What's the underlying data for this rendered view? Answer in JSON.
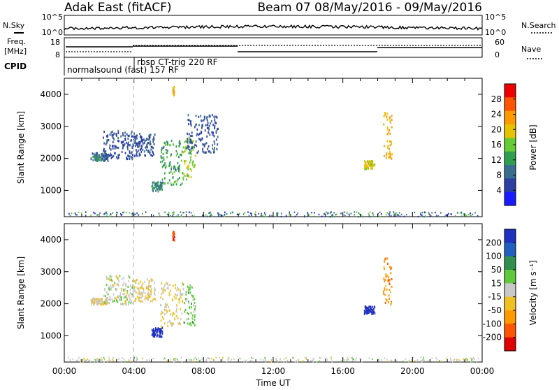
{
  "header": {
    "title_left": "Adak East (fitACF)",
    "title_right": "Beam 07  08/May/2016 - 09/May/2016"
  },
  "noise_panel": {
    "left_label": "N.Sky",
    "right_label": "N.Search",
    "left_ticks": [
      "10^5",
      "10^0"
    ],
    "right_ticks": [
      "10^5",
      "10^0"
    ]
  },
  "freq_panel": {
    "left_label_line1": "Freq.",
    "left_label_line2": "[MHz]",
    "right_label": "Nave",
    "left_ticks": [
      "18",
      "8"
    ],
    "right_ticks": [
      "60",
      "0"
    ]
  },
  "cpid": {
    "label": "CPID",
    "mode1": "normalsound (fast) 157 RF",
    "mode2": "rbsp CT-trig  220 RF"
  },
  "time_axis": {
    "ticks": [
      "00:00",
      "04:00",
      "08:00",
      "12:00",
      "16:00",
      "20:00",
      "00:00"
    ],
    "label": "Time UT"
  },
  "power_panel": {
    "ylabel": "Slant Range [km]",
    "yticks": [
      "1000",
      "2000",
      "3000",
      "4000"
    ],
    "colorbar_label": "Power [dB]",
    "colorbar_ticks": [
      "28",
      "24",
      "20",
      "16",
      "12",
      "8",
      "4"
    ],
    "colors": [
      "#1a1aff",
      "#2d3fa3",
      "#3a6e8f",
      "#2f9e4f",
      "#66cc33",
      "#e6c200",
      "#ff9900",
      "#ff5500",
      "#ee0000"
    ]
  },
  "velocity_panel": {
    "ylabel": "Slant Range [km]",
    "yticks": [
      "1000",
      "2000",
      "3000",
      "4000"
    ],
    "colorbar_label": "Velocity [m s⁻¹]",
    "colorbar_ticks": [
      "200",
      "100",
      "50",
      "15",
      "-15",
      "-50",
      "-100",
      "-200"
    ],
    "colors": [
      "#2030c0",
      "#1f5fbf",
      "#2f8f4f",
      "#5ec93a",
      "#c8c8c8",
      "#f0c020",
      "#ff9900",
      "#ff5500",
      "#e00000"
    ]
  },
  "chart_data": [
    {
      "type": "heatmap",
      "title": "Adak East (fitACF)",
      "xlabel": "Time UT",
      "ylabel": "Slant Range [km]",
      "xlim": [
        0,
        24
      ],
      "ylim": [
        180,
        4500
      ],
      "colorbar": "Power [dB]",
      "clim": [
        0,
        30
      ],
      "clusters": [
        {
          "t": [
            1.5,
            2.5
          ],
          "r": [
            1950,
            2200
          ],
          "value": 8
        },
        {
          "t": [
            2.2,
            4.0
          ],
          "r": [
            2000,
            2900
          ],
          "value": 6
        },
        {
          "t": [
            4.0,
            5.2
          ],
          "r": [
            2100,
            2800
          ],
          "value": 6
        },
        {
          "t": [
            5.0,
            5.6
          ],
          "r": [
            1000,
            1300
          ],
          "value": 10
        },
        {
          "t": [
            5.5,
            6.8
          ],
          "r": [
            1200,
            2600
          ],
          "value": 12
        },
        {
          "t": [
            6.8,
            7.5
          ],
          "r": [
            1350,
            2700
          ],
          "value": 16
        },
        {
          "t": [
            7.0,
            8.8
          ],
          "r": [
            2200,
            3400
          ],
          "value": 6
        },
        {
          "t": [
            6.2,
            6.3
          ],
          "r": [
            4000,
            4300
          ],
          "value": 20
        },
        {
          "t": [
            17.2,
            17.8
          ],
          "r": [
            1700,
            1950
          ],
          "value": 18
        },
        {
          "t": [
            18.3,
            18.8
          ],
          "r": [
            2000,
            3500
          ],
          "value": 20
        }
      ]
    },
    {
      "type": "heatmap",
      "title": "Beam 07  08/May/2016 - 09/May/2016",
      "xlabel": "Time UT",
      "ylabel": "Slant Range [km]",
      "xlim": [
        0,
        24
      ],
      "ylim": [
        180,
        4500
      ],
      "colorbar": "Velocity [m s⁻¹]",
      "clim": [
        -200,
        200
      ],
      "clusters": [
        {
          "t": [
            1.5,
            2.5
          ],
          "r": [
            2000,
            2200
          ],
          "value": -15
        },
        {
          "t": [
            2.2,
            4.0
          ],
          "r": [
            2000,
            2900
          ],
          "value": 0
        },
        {
          "t": [
            4.0,
            5.2
          ],
          "r": [
            2100,
            2800
          ],
          "value": -30
        },
        {
          "t": [
            5.0,
            5.6
          ],
          "r": [
            1000,
            1300
          ],
          "value": 200
        },
        {
          "t": [
            5.5,
            6.8
          ],
          "r": [
            1300,
            2700
          ],
          "value": -20
        },
        {
          "t": [
            6.8,
            7.5
          ],
          "r": [
            1350,
            2700
          ],
          "value": 40
        },
        {
          "t": [
            6.2,
            6.3
          ],
          "r": [
            4000,
            4300
          ],
          "value": -150
        },
        {
          "t": [
            17.2,
            17.8
          ],
          "r": [
            1700,
            1950
          ],
          "value": 200
        },
        {
          "t": [
            18.3,
            18.8
          ],
          "r": [
            2000,
            3500
          ],
          "value": -100
        }
      ]
    }
  ]
}
